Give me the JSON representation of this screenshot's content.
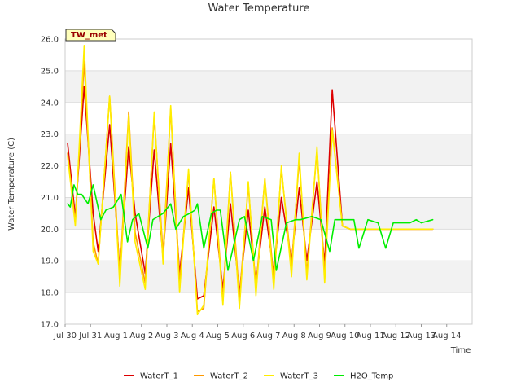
{
  "chart_data": {
    "type": "line",
    "title": "Water Temperature",
    "xlabel": "Time",
    "ylabel": "Water Temperature (C)",
    "site_badge": "TW_met",
    "ylim": [
      17.0,
      26.0
    ],
    "xlim": [
      0,
      16
    ],
    "grid": "horizontal bands",
    "legend_position": "bottom",
    "y_ticks": [
      "17.0",
      "18.0",
      "19.0",
      "20.0",
      "21.0",
      "22.0",
      "23.0",
      "24.0",
      "25.0",
      "26.0"
    ],
    "x_ticks": [
      "Jul 30",
      "Jul 31",
      "Aug 1",
      "Aug 2",
      "Aug 3",
      "Aug 4",
      "Aug 5",
      "Aug 6",
      "Aug 7",
      "Aug 8",
      "Aug 9",
      "Aug 10",
      "Aug 11",
      "Aug 12",
      "Aug 13",
      "Aug 14"
    ],
    "series": [
      {
        "name": "WaterT_1",
        "color": "#dd0000",
        "x": [
          0.1,
          0.4,
          0.75,
          1.1,
          1.3,
          1.75,
          2.15,
          2.5,
          2.75,
          3.15,
          3.5,
          3.85,
          4.15,
          4.5,
          4.85,
          5.2,
          5.45,
          5.85,
          6.2,
          6.5,
          6.85,
          7.2,
          7.5,
          7.85,
          8.2,
          8.5,
          8.9,
          9.2,
          9.5,
          9.9,
          10.2,
          10.5,
          10.9,
          11.2,
          11.6,
          11.9,
          12.2,
          12.6,
          12.9,
          13.25,
          13.6,
          13.9,
          14.2,
          14.45
        ],
        "y": [
          22.7,
          20.4,
          24.5,
          20.5,
          19.3,
          23.3,
          18.7,
          22.6,
          20.5,
          18.6,
          22.5,
          19.1,
          22.7,
          18.6,
          21.3,
          17.8,
          17.9,
          20.7,
          18.1,
          20.8,
          18.0,
          20.6,
          18.3,
          20.7,
          18.6,
          21.0,
          19.0,
          21.3,
          19.0,
          21.5,
          18.9,
          24.4,
          20.1,
          20.0,
          20.0,
          20.0,
          20.0,
          20.0,
          20.0,
          20.0,
          20.0,
          20.0,
          20.0,
          20.0
        ]
      },
      {
        "name": "WaterT_2",
        "color": "#ff9900",
        "x": [
          0.1,
          0.4,
          0.75,
          1.1,
          1.3,
          1.75,
          2.15,
          2.5,
          2.75,
          3.15,
          3.5,
          3.85,
          4.15,
          4.5,
          4.85,
          5.2,
          5.45,
          5.85,
          6.2,
          6.5,
          6.85,
          7.2,
          7.5,
          7.85,
          8.2,
          8.5,
          8.9,
          9.2,
          9.5,
          9.9,
          10.2,
          10.5,
          10.9,
          11.2,
          11.6,
          11.9,
          12.2,
          12.6,
          12.9,
          13.25,
          13.6,
          13.9,
          14.2,
          14.45
        ],
        "y": [
          22.4,
          20.2,
          25.3,
          19.6,
          18.9,
          24.2,
          18.5,
          23.7,
          19.9,
          18.3,
          23.6,
          19.2,
          23.8,
          18.3,
          21.8,
          17.4,
          17.5,
          21.6,
          17.8,
          21.8,
          17.8,
          21.4,
          18.1,
          21.6,
          18.4,
          21.9,
          18.8,
          22.2,
          18.6,
          22.5,
          18.6,
          23.2,
          20.1,
          20.0,
          20.0,
          20.0,
          20.0,
          20.0,
          20.0,
          20.0,
          20.0,
          20.0,
          20.0,
          20.0
        ]
      },
      {
        "name": "WaterT_3",
        "color": "#ffee00",
        "x": [
          0.1,
          0.4,
          0.75,
          1.1,
          1.3,
          1.75,
          2.15,
          2.5,
          2.75,
          3.15,
          3.5,
          3.85,
          4.15,
          4.5,
          4.85,
          5.2,
          5.45,
          5.85,
          6.2,
          6.5,
          6.85,
          7.2,
          7.5,
          7.85,
          8.2,
          8.5,
          8.9,
          9.2,
          9.5,
          9.9,
          10.2,
          10.5,
          10.9,
          11.2,
          11.6,
          11.9,
          12.2,
          12.6,
          12.9,
          13.25,
          13.6,
          13.9,
          14.2,
          14.45
        ],
        "y": [
          22.3,
          20.1,
          25.8,
          19.3,
          18.9,
          24.2,
          18.2,
          23.6,
          19.6,
          18.1,
          23.7,
          18.9,
          23.9,
          18.0,
          21.9,
          17.3,
          17.6,
          21.6,
          17.6,
          21.8,
          17.5,
          21.5,
          17.9,
          21.6,
          18.1,
          22.0,
          18.5,
          22.4,
          18.4,
          22.6,
          18.3,
          23.1,
          20.1,
          20.0,
          20.0,
          20.0,
          20.0,
          20.0,
          20.0,
          20.0,
          20.0,
          20.0,
          20.0,
          20.0
        ]
      },
      {
        "name": "H2O_Temp",
        "color": "#00ee00",
        "x": [
          0.1,
          0.2,
          0.35,
          0.5,
          0.65,
          0.9,
          1.1,
          1.4,
          1.6,
          1.9,
          2.2,
          2.45,
          2.65,
          2.9,
          3.25,
          3.45,
          3.85,
          4.15,
          4.35,
          4.65,
          4.9,
          5.1,
          5.2,
          5.45,
          5.75,
          5.95,
          6.1,
          6.4,
          6.85,
          7.05,
          7.4,
          7.75,
          8.1,
          8.3,
          8.7,
          9.05,
          9.25,
          9.7,
          10.05,
          10.4,
          10.6,
          10.9,
          11.35,
          11.55,
          11.9,
          12.3,
          12.6,
          12.9,
          13.15,
          13.3,
          13.55,
          13.8,
          14.0,
          14.45
        ],
        "y": [
          20.8,
          20.7,
          21.4,
          21.1,
          21.1,
          20.8,
          21.4,
          20.3,
          20.6,
          20.7,
          21.1,
          19.6,
          20.3,
          20.5,
          19.4,
          20.3,
          20.5,
          20.8,
          20.0,
          20.4,
          20.5,
          20.6,
          20.8,
          19.4,
          20.5,
          20.6,
          20.6,
          18.7,
          20.3,
          20.4,
          19.0,
          20.4,
          20.3,
          18.7,
          20.2,
          20.3,
          20.3,
          20.4,
          20.3,
          19.3,
          20.3,
          20.3,
          20.3,
          19.4,
          20.3,
          20.2,
          19.4,
          20.2,
          20.2,
          20.2,
          20.2,
          20.3,
          20.2,
          20.3
        ]
      }
    ]
  }
}
